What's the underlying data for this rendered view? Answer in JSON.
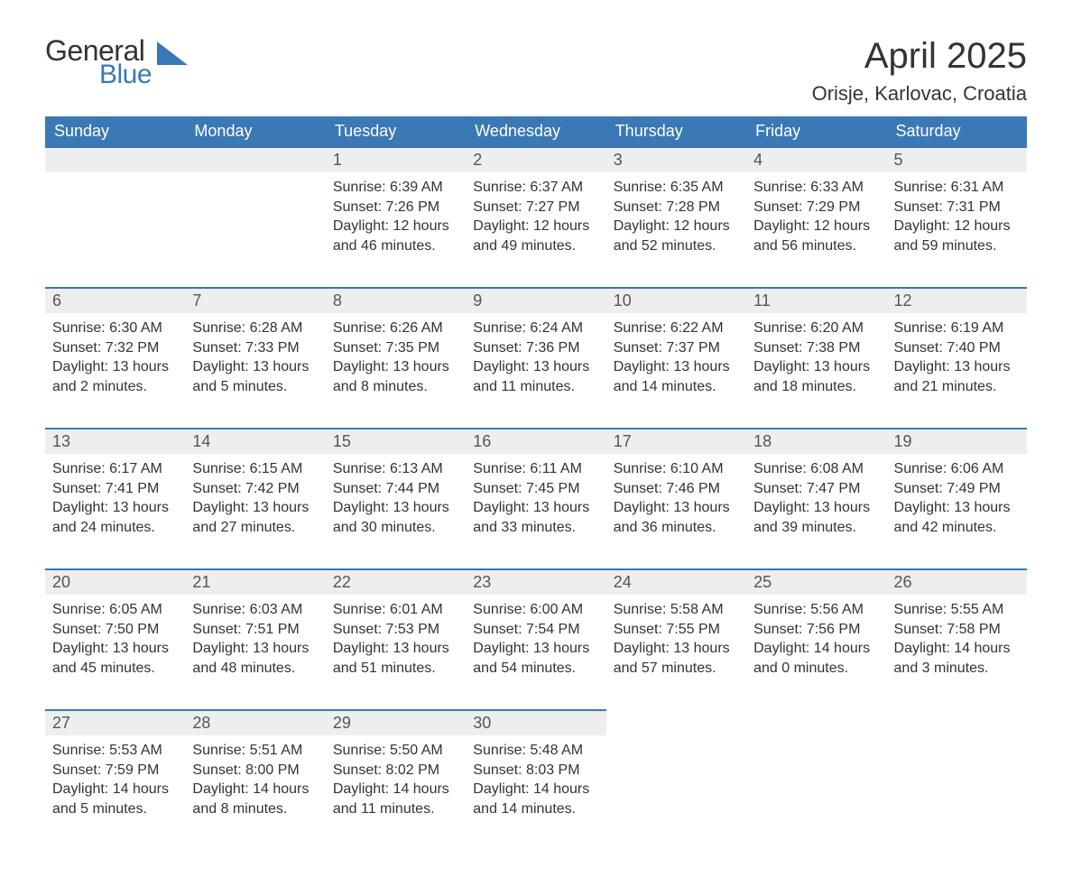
{
  "brand": {
    "word1": "General",
    "word2": "Blue",
    "tri_color": "#3a78b6"
  },
  "title": "April 2025",
  "location": "Orisje, Karlovac, Croatia",
  "colors": {
    "header_bg": "#3a78b6",
    "header_text": "#ffffff",
    "daynum_bg": "#eeeeee",
    "row_border": "#3a78b6",
    "text": "#333333",
    "background": "#ffffff"
  },
  "calendar": {
    "type": "table",
    "columns": [
      "Sunday",
      "Monday",
      "Tuesday",
      "Wednesday",
      "Thursday",
      "Friday",
      "Saturday"
    ],
    "weeks": [
      [
        null,
        null,
        {
          "n": "1",
          "sr": "6:39 AM",
          "ss": "7:26 PM",
          "dl": "12 hours and 46 minutes."
        },
        {
          "n": "2",
          "sr": "6:37 AM",
          "ss": "7:27 PM",
          "dl": "12 hours and 49 minutes."
        },
        {
          "n": "3",
          "sr": "6:35 AM",
          "ss": "7:28 PM",
          "dl": "12 hours and 52 minutes."
        },
        {
          "n": "4",
          "sr": "6:33 AM",
          "ss": "7:29 PM",
          "dl": "12 hours and 56 minutes."
        },
        {
          "n": "5",
          "sr": "6:31 AM",
          "ss": "7:31 PM",
          "dl": "12 hours and 59 minutes."
        }
      ],
      [
        {
          "n": "6",
          "sr": "6:30 AM",
          "ss": "7:32 PM",
          "dl": "13 hours and 2 minutes."
        },
        {
          "n": "7",
          "sr": "6:28 AM",
          "ss": "7:33 PM",
          "dl": "13 hours and 5 minutes."
        },
        {
          "n": "8",
          "sr": "6:26 AM",
          "ss": "7:35 PM",
          "dl": "13 hours and 8 minutes."
        },
        {
          "n": "9",
          "sr": "6:24 AM",
          "ss": "7:36 PM",
          "dl": "13 hours and 11 minutes."
        },
        {
          "n": "10",
          "sr": "6:22 AM",
          "ss": "7:37 PM",
          "dl": "13 hours and 14 minutes."
        },
        {
          "n": "11",
          "sr": "6:20 AM",
          "ss": "7:38 PM",
          "dl": "13 hours and 18 minutes."
        },
        {
          "n": "12",
          "sr": "6:19 AM",
          "ss": "7:40 PM",
          "dl": "13 hours and 21 minutes."
        }
      ],
      [
        {
          "n": "13",
          "sr": "6:17 AM",
          "ss": "7:41 PM",
          "dl": "13 hours and 24 minutes."
        },
        {
          "n": "14",
          "sr": "6:15 AM",
          "ss": "7:42 PM",
          "dl": "13 hours and 27 minutes."
        },
        {
          "n": "15",
          "sr": "6:13 AM",
          "ss": "7:44 PM",
          "dl": "13 hours and 30 minutes."
        },
        {
          "n": "16",
          "sr": "6:11 AM",
          "ss": "7:45 PM",
          "dl": "13 hours and 33 minutes."
        },
        {
          "n": "17",
          "sr": "6:10 AM",
          "ss": "7:46 PM",
          "dl": "13 hours and 36 minutes."
        },
        {
          "n": "18",
          "sr": "6:08 AM",
          "ss": "7:47 PM",
          "dl": "13 hours and 39 minutes."
        },
        {
          "n": "19",
          "sr": "6:06 AM",
          "ss": "7:49 PM",
          "dl": "13 hours and 42 minutes."
        }
      ],
      [
        {
          "n": "20",
          "sr": "6:05 AM",
          "ss": "7:50 PM",
          "dl": "13 hours and 45 minutes."
        },
        {
          "n": "21",
          "sr": "6:03 AM",
          "ss": "7:51 PM",
          "dl": "13 hours and 48 minutes."
        },
        {
          "n": "22",
          "sr": "6:01 AM",
          "ss": "7:53 PM",
          "dl": "13 hours and 51 minutes."
        },
        {
          "n": "23",
          "sr": "6:00 AM",
          "ss": "7:54 PM",
          "dl": "13 hours and 54 minutes."
        },
        {
          "n": "24",
          "sr": "5:58 AM",
          "ss": "7:55 PM",
          "dl": "13 hours and 57 minutes."
        },
        {
          "n": "25",
          "sr": "5:56 AM",
          "ss": "7:56 PM",
          "dl": "14 hours and 0 minutes."
        },
        {
          "n": "26",
          "sr": "5:55 AM",
          "ss": "7:58 PM",
          "dl": "14 hours and 3 minutes."
        }
      ],
      [
        {
          "n": "27",
          "sr": "5:53 AM",
          "ss": "7:59 PM",
          "dl": "14 hours and 5 minutes."
        },
        {
          "n": "28",
          "sr": "5:51 AM",
          "ss": "8:00 PM",
          "dl": "14 hours and 8 minutes."
        },
        {
          "n": "29",
          "sr": "5:50 AM",
          "ss": "8:02 PM",
          "dl": "14 hours and 11 minutes."
        },
        {
          "n": "30",
          "sr": "5:48 AM",
          "ss": "8:03 PM",
          "dl": "14 hours and 14 minutes."
        },
        null,
        null,
        null
      ]
    ],
    "labels": {
      "sunrise": "Sunrise: ",
      "sunset": "Sunset: ",
      "daylight": "Daylight: "
    }
  }
}
